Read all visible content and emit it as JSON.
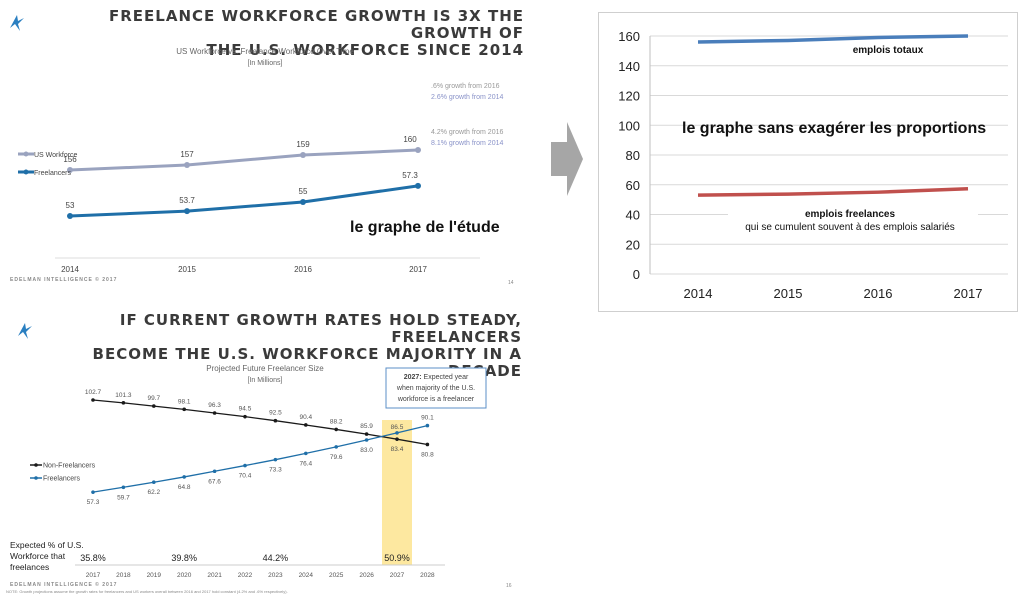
{
  "top": {
    "headline_line1": "FREELANCE WORKFORCE GROWTH IS 3X THE GROWTH OF",
    "headline_line2": "THE U.S. WORKFORCE SINCE 2014",
    "footer": "EDELMAN INTELLIGENCE © 2017",
    "page_no": "14"
  },
  "bottom": {
    "headline_line1": "IF CURRENT GROWTH RATES HOLD STEADY, FREELANCERS",
    "headline_line2": "BECOME THE U.S. WORKFORCE MAJORITY IN A DECADE",
    "footer": "EDELMAN INTELLIGENCE © 2017",
    "note": "NOTE: Growth projections assume the growth rates for freelancers and US workers overall between 2016 and 2017 hold constant (4.2% and .6% respectively).",
    "page_no": "16"
  },
  "colors": {
    "us_workforce": "#9aa3bf",
    "freelancers": "#1f6fa8",
    "totaux": "#4a7ebb",
    "freelances_fr": "#c0504d",
    "highlight": "#fde8a0",
    "arrow": "#a6a6a6"
  },
  "chart_data": [
    {
      "type": "line",
      "title": "US Workforce vs. Freelance Workforce Over Time",
      "subtitle": "[In Millions]",
      "categories": [
        "2014",
        "2015",
        "2016",
        "2017"
      ],
      "series": [
        {
          "name": "US Workforce",
          "values": [
            156,
            157,
            159,
            160
          ],
          "labels": [
            "156",
            "157",
            "159",
            "160"
          ]
        },
        {
          "name": "Freelancers",
          "values": [
            53,
            53.7,
            55,
            57.3
          ],
          "labels": [
            "53",
            "53.7",
            "55",
            "57.3"
          ]
        }
      ],
      "annotations": [
        {
          "series": "US Workforce",
          "lines": [
            ".6% growth from 2016",
            "2.6% growth from 2014"
          ]
        },
        {
          "series": "Freelancers",
          "lines": [
            "4.2% growth from 2016",
            "8.1% growth from 2014"
          ]
        }
      ],
      "overlay_label": "le graphe de l'étude",
      "legend": "left"
    },
    {
      "type": "line",
      "categories": [
        "2014",
        "2015",
        "2016",
        "2017"
      ],
      "ylim": [
        0,
        160
      ],
      "yticks": [
        "0",
        "20",
        "40",
        "60",
        "80",
        "100",
        "120",
        "140",
        "160"
      ],
      "grid": true,
      "series": [
        {
          "name": "emplois totaux",
          "values": [
            156,
            157,
            159,
            160
          ]
        },
        {
          "name": "emplois freelances",
          "values": [
            53,
            53.7,
            55,
            57.3
          ]
        }
      ],
      "series_labels": {
        "totaux": "emplois totaux",
        "freelances_1": "emplois freelances",
        "freelances_2": "qui se cumulent souvent à des emplois salariés"
      },
      "overlay_label": "le graphe sans exagérer les proportions"
    },
    {
      "type": "line",
      "title": "Projected Future Freelancer Size",
      "subtitle": "[In Millions]",
      "categories": [
        "2017",
        "2018",
        "2019",
        "2020",
        "2021",
        "2022",
        "2023",
        "2024",
        "2025",
        "2026",
        "2027",
        "2028"
      ],
      "series": [
        {
          "name": "Non-Freelancers",
          "values": [
            102.7,
            101.3,
            99.7,
            98.1,
            96.3,
            94.5,
            92.5,
            90.4,
            88.2,
            85.9,
            83.4,
            80.8
          ],
          "labels": [
            "102.7",
            "101.3",
            "99.7",
            "98.1",
            "96.3",
            "94.5",
            "92.5",
            "90.4",
            "88.2",
            "85.9",
            "83.4",
            "80.8"
          ]
        },
        {
          "name": "Freelancers",
          "values": [
            57.3,
            59.7,
            62.2,
            64.8,
            67.6,
            70.4,
            73.3,
            76.4,
            79.6,
            83.0,
            86.5,
            90.1
          ],
          "labels": [
            "57.3",
            "59.7",
            "62.2",
            "64.8",
            "67.6",
            "70.4",
            "73.3",
            "76.4",
            "79.6",
            "83.0",
            "86.5",
            "90.1"
          ]
        }
      ],
      "callout_year": "2027:",
      "callout_line1": " Expected year",
      "callout_line2": "when majority of the U.S.",
      "callout_line3": "workforce is a freelancer",
      "pct_label": [
        "Expected % of U.S.",
        "Workforce that",
        "freelances"
      ],
      "pct_values": [
        {
          "year": "2017",
          "value": "35.8%"
        },
        {
          "year": "2020",
          "value": "39.8%"
        },
        {
          "year": "2023",
          "value": "44.2%"
        },
        {
          "year": "2027",
          "value": "50.9%"
        }
      ],
      "legend": "left"
    }
  ]
}
